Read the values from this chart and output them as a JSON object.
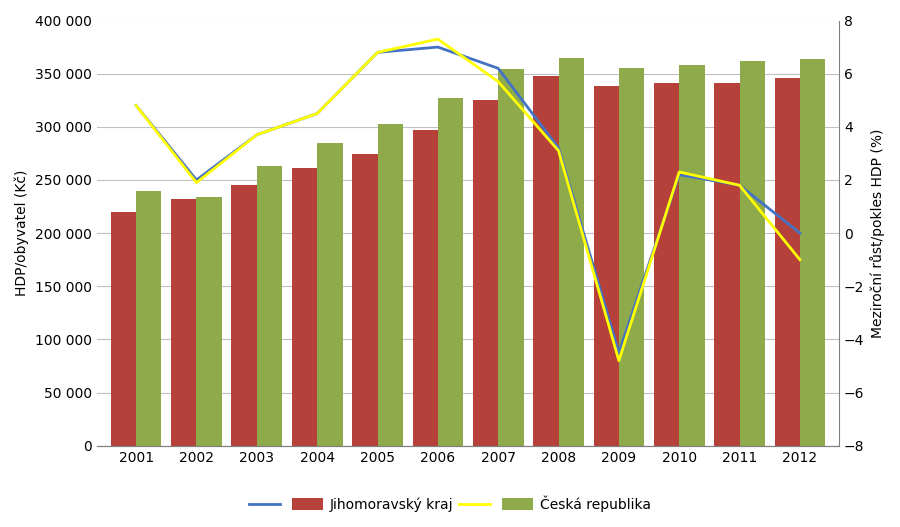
{
  "years": [
    2001,
    2002,
    2003,
    2004,
    2005,
    2006,
    2007,
    2008,
    2009,
    2010,
    2011,
    2012
  ],
  "bar_jihomoravsky": [
    220000,
    232000,
    245000,
    261000,
    274000,
    297000,
    325000,
    348000,
    338000,
    341000,
    341000,
    346000
  ],
  "bar_ceska": [
    240000,
    234000,
    263000,
    285000,
    303000,
    327000,
    354000,
    365000,
    355000,
    358000,
    362000,
    364000
  ],
  "line_jihomoravsky": [
    4.8,
    2.0,
    3.7,
    4.5,
    6.8,
    7.0,
    6.2,
    3.2,
    -4.5,
    2.2,
    1.8,
    0.0
  ],
  "line_ceska": [
    4.8,
    1.9,
    3.7,
    4.5,
    6.8,
    7.3,
    5.7,
    3.1,
    -4.8,
    2.3,
    1.8,
    -1.0
  ],
  "bar_color_jihomoravsky": "#b5413a",
  "bar_color_ceska": "#8faa4b",
  "line_color_jihomoravsky": "#4472c4",
  "line_color_ceska": "#ffff00",
  "ylabel_left": "HDP/obyvatel (Kč)",
  "ylabel_right": "Meziroční růst/pokles HDP (%)",
  "ylim_left": [
    0,
    400000
  ],
  "ylim_right": [
    -8,
    8
  ],
  "yticks_left": [
    0,
    50000,
    100000,
    150000,
    200000,
    250000,
    300000,
    350000,
    400000
  ],
  "yticks_right": [
    -8,
    -6,
    -4,
    -2,
    0,
    2,
    4,
    6,
    8
  ],
  "legend_labels": [
    "Jihomoravský kraj",
    "Česká republika"
  ],
  "background_color": "#ffffff",
  "grid_color": "#c0c0c0",
  "spine_color": "#808080"
}
